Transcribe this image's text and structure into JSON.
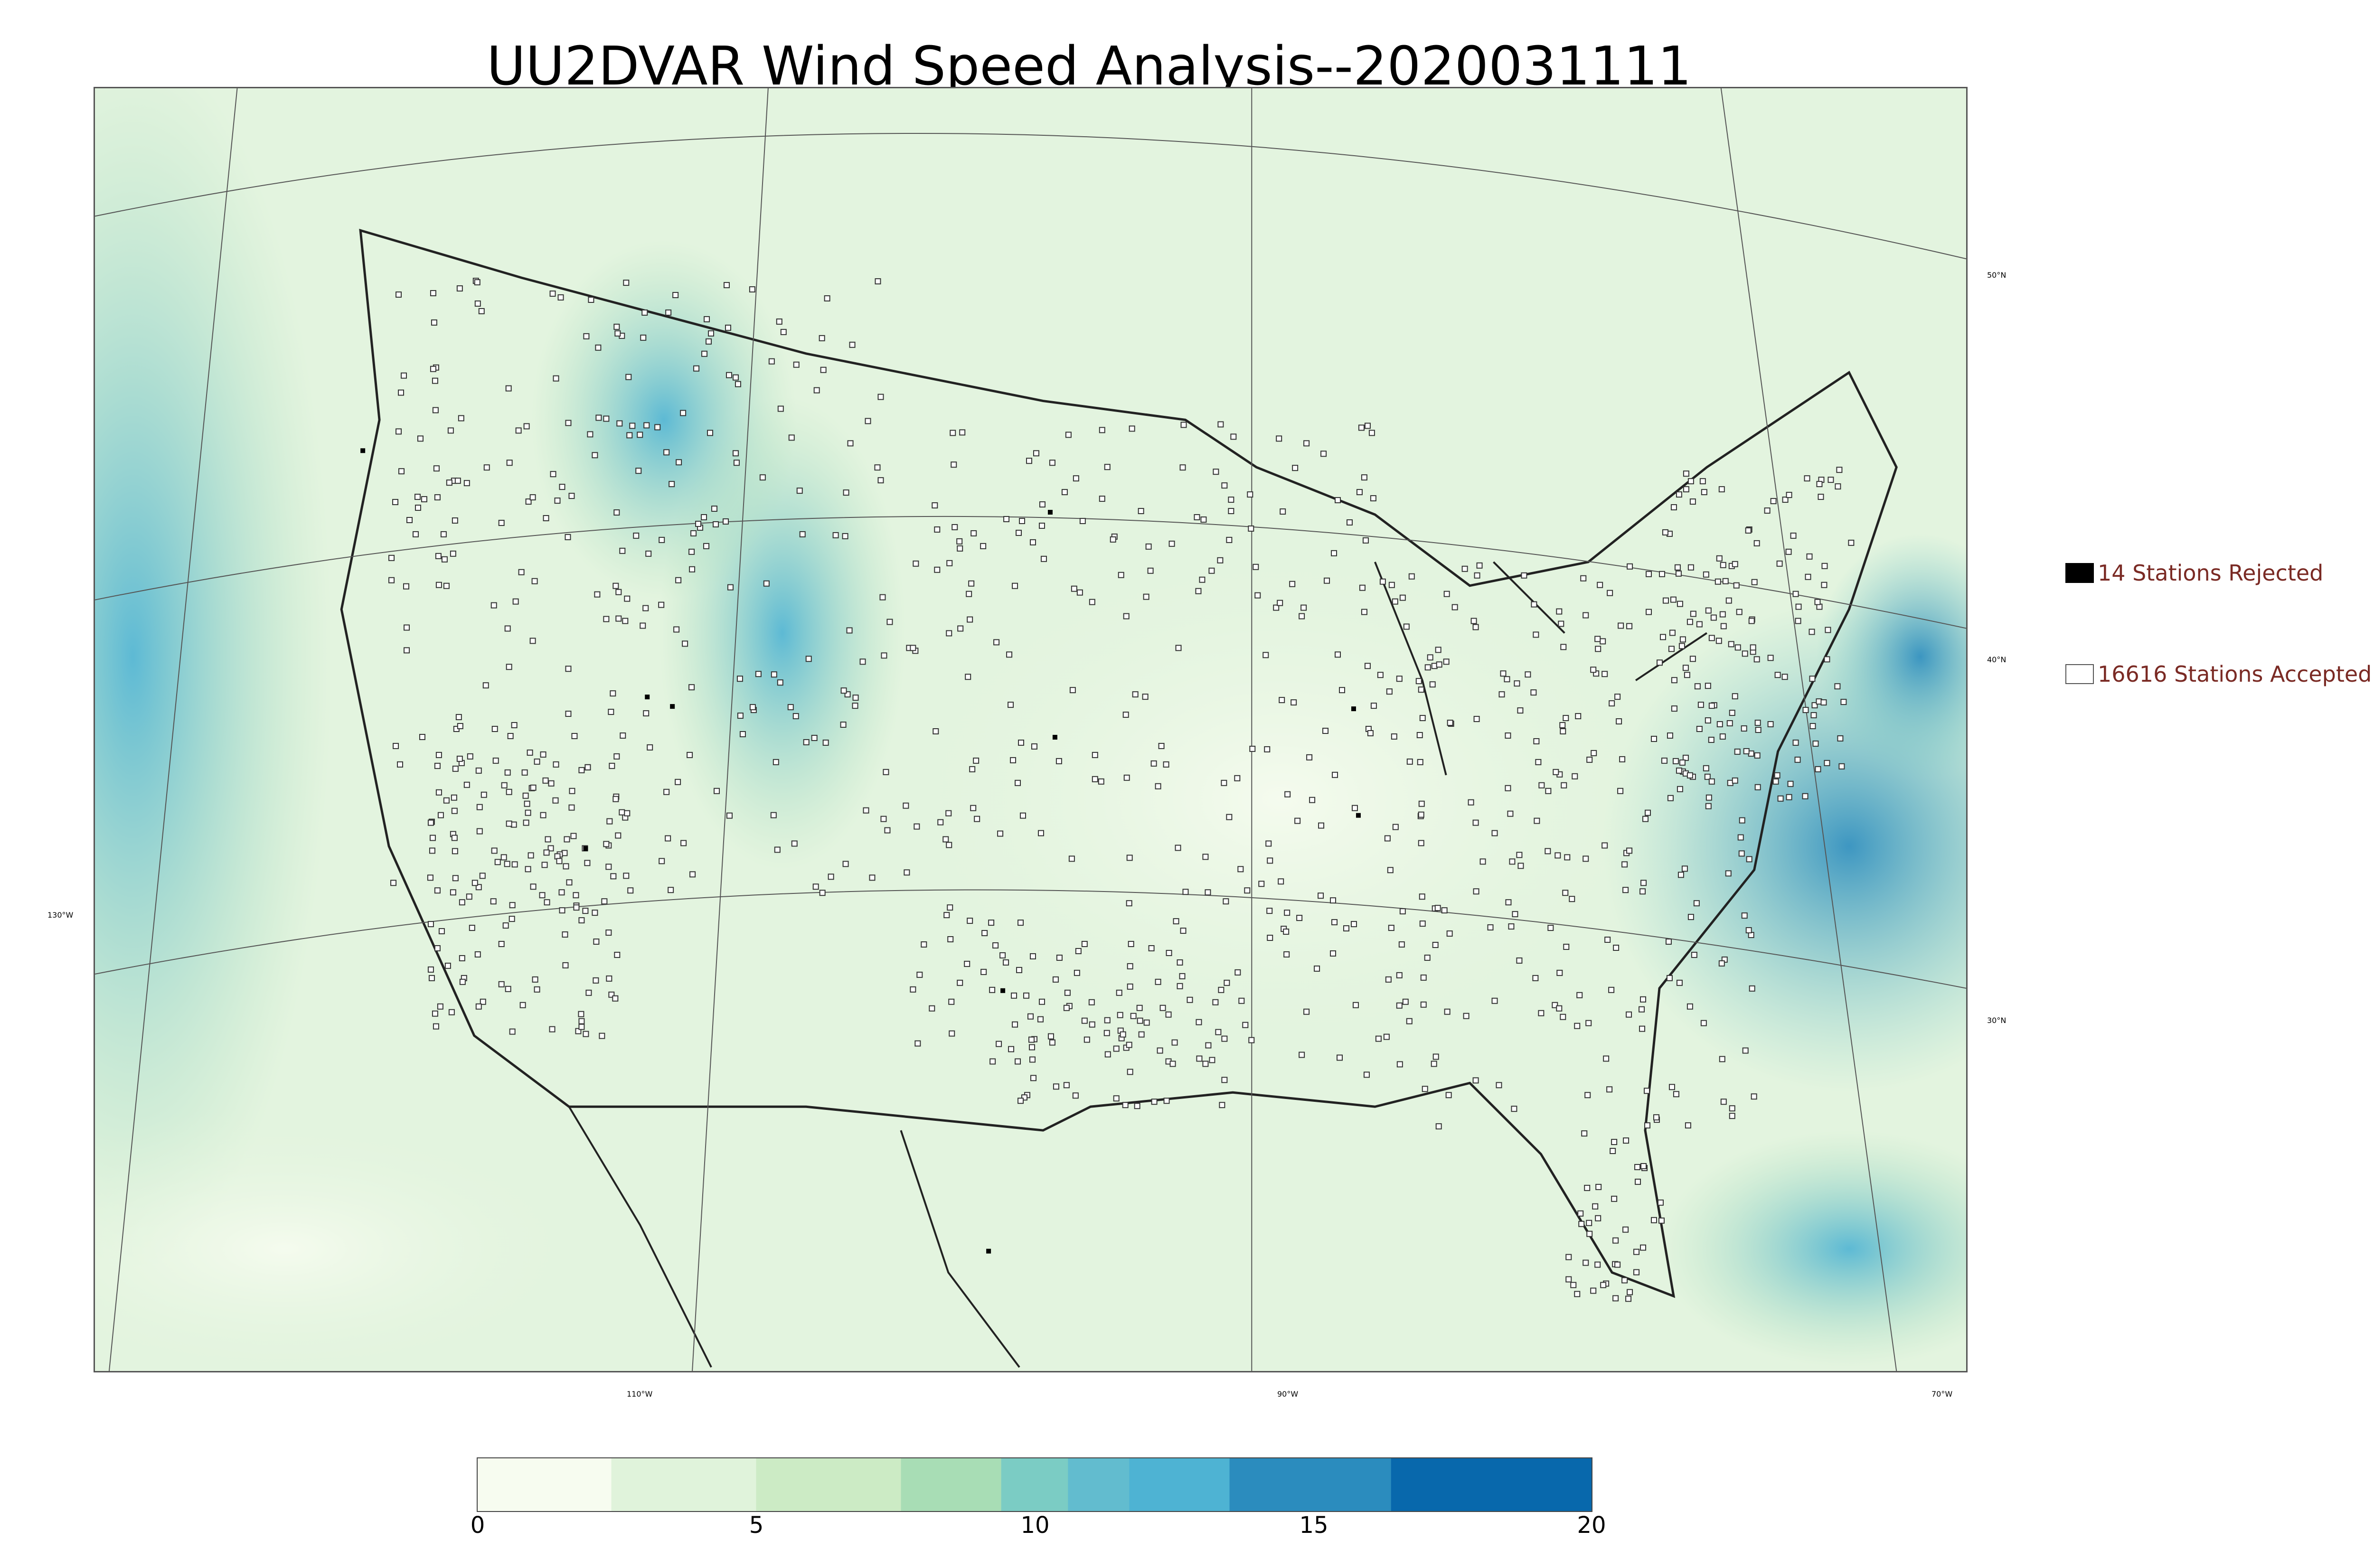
{
  "title": "UU2DVAR Wind Speed Analysis--2020031111",
  "map": {
    "graticule_labels": {
      "lon": [
        "130°W",
        "110°W",
        "90°W",
        "70°W"
      ],
      "lat": [
        "50°N",
        "40°N",
        "30°N"
      ]
    },
    "colormap": "GnBu-like sequential (white → green → blue)",
    "station_markers": "open squares (accepted), filled squares (rejected)"
  },
  "legend": {
    "rejected": {
      "label": "14 Stations Rejected",
      "swatch_color": "#000000"
    },
    "accepted": {
      "label": "16616 Stations Accepted",
      "swatch_color": "#ffffff"
    },
    "text_color": "#7a2a24"
  },
  "colorbar": {
    "ticks": [
      "0",
      "5",
      "10",
      "15",
      "20"
    ],
    "min": 0,
    "max": 20,
    "colors": [
      "#f7fcf0",
      "#e0f3db",
      "#ccebc5",
      "#a8ddb5",
      "#7bccc4",
      "#62bccf",
      "#4eb3d3",
      "#2b8cbe",
      "#0868ac",
      "#136294"
    ]
  }
}
